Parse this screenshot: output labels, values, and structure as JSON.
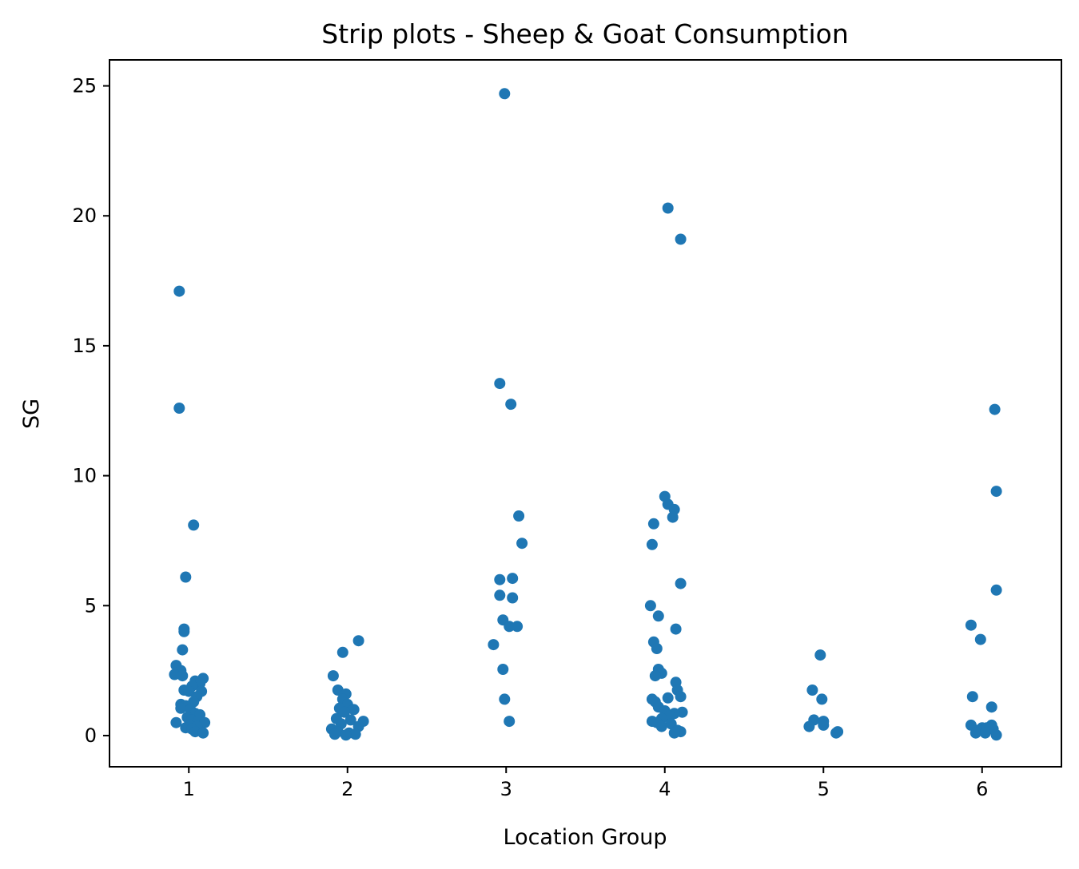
{
  "chart_data": {
    "type": "scatter",
    "title": "Strip plots - Sheep & Goat Consumption",
    "xlabel": "Location Group",
    "ylabel": "SG",
    "categories": [
      "1",
      "2",
      "3",
      "4",
      "5",
      "6"
    ],
    "yticks": [
      "0",
      "5",
      "10",
      "15",
      "20",
      "25"
    ],
    "ylim": [
      -1.2,
      26
    ],
    "grid": false,
    "legend": "none",
    "marker_color": "#1f77b4",
    "series": [
      {
        "points": [
          {
            "x": 0.94,
            "y": 17.1
          },
          {
            "x": 0.94,
            "y": 12.6
          },
          {
            "x": 1.03,
            "y": 8.1
          },
          {
            "x": 0.98,
            "y": 6.1
          },
          {
            "x": 0.97,
            "y": 4.1
          },
          {
            "x": 0.97,
            "y": 4.0
          },
          {
            "x": 0.96,
            "y": 3.3
          },
          {
            "x": 0.92,
            "y": 2.7
          },
          {
            "x": 0.95,
            "y": 2.5
          },
          {
            "x": 0.91,
            "y": 2.35
          },
          {
            "x": 0.96,
            "y": 2.3
          },
          {
            "x": 1.09,
            "y": 2.2
          },
          {
            "x": 1.04,
            "y": 2.1
          },
          {
            "x": 1.07,
            "y": 2.0
          },
          {
            "x": 1.02,
            "y": 1.9
          },
          {
            "x": 0.97,
            "y": 1.75
          },
          {
            "x": 1.0,
            "y": 1.7
          },
          {
            "x": 1.08,
            "y": 1.7
          },
          {
            "x": 1.05,
            "y": 1.5
          },
          {
            "x": 1.03,
            "y": 1.3
          },
          {
            "x": 0.95,
            "y": 1.2
          },
          {
            "x": 0.98,
            "y": 1.15
          },
          {
            "x": 0.95,
            "y": 1.05
          },
          {
            "x": 1.01,
            "y": 1.0
          },
          {
            "x": 1.04,
            "y": 0.85
          },
          {
            "x": 1.07,
            "y": 0.8
          },
          {
            "x": 0.99,
            "y": 0.7
          },
          {
            "x": 1.02,
            "y": 0.6
          },
          {
            "x": 1.06,
            "y": 0.55
          },
          {
            "x": 1.1,
            "y": 0.5
          },
          {
            "x": 0.92,
            "y": 0.5
          },
          {
            "x": 1.0,
            "y": 0.4
          },
          {
            "x": 1.05,
            "y": 0.35
          },
          {
            "x": 0.98,
            "y": 0.3
          },
          {
            "x": 1.02,
            "y": 0.25
          },
          {
            "x": 1.04,
            "y": 0.15
          },
          {
            "x": 1.09,
            "y": 0.1
          },
          {
            "x": 2.07,
            "y": 3.65
          },
          {
            "x": 1.97,
            "y": 3.2
          },
          {
            "x": 1.91,
            "y": 2.3
          },
          {
            "x": 1.94,
            "y": 1.75
          },
          {
            "x": 1.99,
            "y": 1.6
          },
          {
            "x": 1.97,
            "y": 1.4
          },
          {
            "x": 2.0,
            "y": 1.2
          },
          {
            "x": 1.95,
            "y": 1.05
          },
          {
            "x": 2.04,
            "y": 1.0
          },
          {
            "x": 1.98,
            "y": 0.9
          },
          {
            "x": 1.93,
            "y": 0.65
          },
          {
            "x": 2.02,
            "y": 0.6
          },
          {
            "x": 2.1,
            "y": 0.55
          },
          {
            "x": 1.96,
            "y": 0.45
          },
          {
            "x": 2.07,
            "y": 0.35
          },
          {
            "x": 1.9,
            "y": 0.25
          },
          {
            "x": 1.94,
            "y": 0.15
          },
          {
            "x": 2.01,
            "y": 0.1
          },
          {
            "x": 2.05,
            "y": 0.05
          },
          {
            "x": 1.92,
            "y": 0.05
          },
          {
            "x": 1.99,
            "y": 0.02
          },
          {
            "x": 2.99,
            "y": 24.7
          },
          {
            "x": 2.96,
            "y": 13.55
          },
          {
            "x": 3.03,
            "y": 12.75
          },
          {
            "x": 3.08,
            "y": 8.45
          },
          {
            "x": 3.1,
            "y": 7.4
          },
          {
            "x": 2.96,
            "y": 6.0
          },
          {
            "x": 3.04,
            "y": 6.05
          },
          {
            "x": 2.96,
            "y": 5.4
          },
          {
            "x": 3.04,
            "y": 5.3
          },
          {
            "x": 2.98,
            "y": 4.45
          },
          {
            "x": 3.02,
            "y": 4.2
          },
          {
            "x": 3.07,
            "y": 4.2
          },
          {
            "x": 2.92,
            "y": 3.5
          },
          {
            "x": 2.98,
            "y": 2.55
          },
          {
            "x": 2.99,
            "y": 1.4
          },
          {
            "x": 3.02,
            "y": 0.55
          },
          {
            "x": 4.02,
            "y": 20.3
          },
          {
            "x": 4.1,
            "y": 19.1
          },
          {
            "x": 4.0,
            "y": 9.2
          },
          {
            "x": 4.02,
            "y": 8.9
          },
          {
            "x": 4.06,
            "y": 8.7
          },
          {
            "x": 4.05,
            "y": 8.4
          },
          {
            "x": 3.93,
            "y": 8.15
          },
          {
            "x": 3.92,
            "y": 7.35
          },
          {
            "x": 4.1,
            "y": 5.85
          },
          {
            "x": 3.91,
            "y": 5.0
          },
          {
            "x": 3.96,
            "y": 4.6
          },
          {
            "x": 4.07,
            "y": 4.1
          },
          {
            "x": 3.93,
            "y": 3.6
          },
          {
            "x": 3.95,
            "y": 3.35
          },
          {
            "x": 3.96,
            "y": 2.55
          },
          {
            "x": 3.98,
            "y": 2.4
          },
          {
            "x": 3.94,
            "y": 2.3
          },
          {
            "x": 4.07,
            "y": 2.05
          },
          {
            "x": 4.08,
            "y": 1.75
          },
          {
            "x": 4.1,
            "y": 1.5
          },
          {
            "x": 4.02,
            "y": 1.45
          },
          {
            "x": 3.92,
            "y": 1.4
          },
          {
            "x": 3.94,
            "y": 1.3
          },
          {
            "x": 3.96,
            "y": 1.1
          },
          {
            "x": 4.0,
            "y": 0.95
          },
          {
            "x": 4.11,
            "y": 0.9
          },
          {
            "x": 4.06,
            "y": 0.85
          },
          {
            "x": 4.03,
            "y": 0.75
          },
          {
            "x": 3.98,
            "y": 0.65
          },
          {
            "x": 3.92,
            "y": 0.55
          },
          {
            "x": 3.95,
            "y": 0.5
          },
          {
            "x": 4.04,
            "y": 0.45
          },
          {
            "x": 3.98,
            "y": 0.35
          },
          {
            "x": 4.08,
            "y": 0.2
          },
          {
            "x": 4.1,
            "y": 0.15
          },
          {
            "x": 4.06,
            "y": 0.1
          }
        ]
      },
      {
        "points": [
          {
            "x": 4.98,
            "y": 3.1
          },
          {
            "x": 4.93,
            "y": 1.75
          },
          {
            "x": 4.99,
            "y": 1.4
          },
          {
            "x": 4.94,
            "y": 0.6
          },
          {
            "x": 5.0,
            "y": 0.55
          },
          {
            "x": 5.0,
            "y": 0.4
          },
          {
            "x": 4.91,
            "y": 0.35
          },
          {
            "x": 5.09,
            "y": 0.15
          },
          {
            "x": 5.08,
            "y": 0.1
          }
        ]
      },
      {
        "points": [
          {
            "x": 6.08,
            "y": 12.55
          },
          {
            "x": 6.09,
            "y": 9.4
          },
          {
            "x": 6.09,
            "y": 5.6
          },
          {
            "x": 5.93,
            "y": 4.25
          },
          {
            "x": 5.99,
            "y": 3.7
          },
          {
            "x": 5.94,
            "y": 1.5
          },
          {
            "x": 6.06,
            "y": 1.1
          },
          {
            "x": 5.93,
            "y": 0.4
          },
          {
            "x": 6.06,
            "y": 0.4
          },
          {
            "x": 6.0,
            "y": 0.3
          },
          {
            "x": 6.03,
            "y": 0.3
          },
          {
            "x": 6.07,
            "y": 0.25
          },
          {
            "x": 5.97,
            "y": 0.2
          },
          {
            "x": 5.96,
            "y": 0.1
          },
          {
            "x": 6.02,
            "y": 0.1
          },
          {
            "x": 6.09,
            "y": 0.02
          }
        ]
      }
    ]
  }
}
